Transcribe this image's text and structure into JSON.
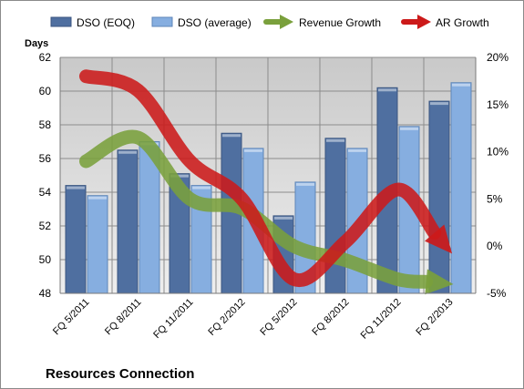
{
  "chart_data": {
    "type": "bar",
    "title": "Resources Connection",
    "ylabel": "Days",
    "categories": [
      "FQ 5/2011",
      "FQ 8/2011",
      "FQ 11/2011",
      "FQ 2/2012",
      "FQ 5/2012",
      "FQ 8/2012",
      "FQ 11/2012",
      "FQ 2/2013"
    ],
    "y_ticks": [
      "48",
      "50",
      "52",
      "54",
      "56",
      "58",
      "60",
      "62"
    ],
    "y2_ticks": [
      "-5%",
      "0%",
      "5%",
      "10%",
      "15%",
      "20%"
    ],
    "ylim": [
      48,
      62
    ],
    "y2lim": [
      -5,
      20
    ],
    "grid": true,
    "legend_position": "top",
    "series": [
      {
        "name": "DSO (EOQ)",
        "kind": "bar",
        "axis": "left",
        "color": "#4f6fa0",
        "values": [
          54.4,
          56.5,
          55.1,
          57.5,
          52.6,
          57.2,
          60.2,
          59.4
        ]
      },
      {
        "name": "DSO (average)",
        "kind": "bar",
        "axis": "left",
        "color": "#86aee0",
        "values": [
          53.8,
          57.0,
          54.4,
          56.6,
          54.6,
          56.6,
          57.9,
          60.5
        ]
      },
      {
        "name": "Revenue Growth",
        "kind": "arrow-line",
        "axis": "right",
        "color": "#7aa03c",
        "values": [
          9.0,
          11.5,
          5.0,
          4.0,
          0.0,
          -1.5,
          -3.5,
          -4.0
        ]
      },
      {
        "name": "AR Growth",
        "kind": "arrow-line",
        "axis": "right",
        "color": "#cc1a1a",
        "values": [
          18.0,
          16.5,
          9.0,
          5.0,
          -3.5,
          0.5,
          6.0,
          -0.5
        ]
      }
    ]
  }
}
